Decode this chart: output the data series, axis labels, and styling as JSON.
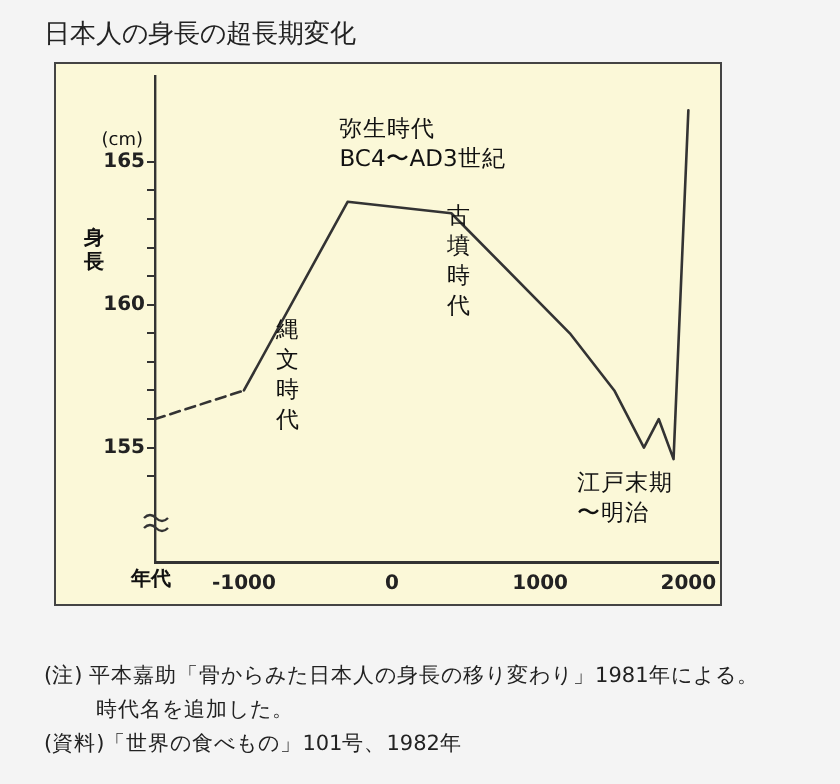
{
  "chart_data": {
    "type": "line",
    "title": "日本人の身長の超長期変化",
    "xlabel": "年代",
    "ylabel": "身長",
    "xlim": [
      -1600,
      2200
    ],
    "xticks": [
      -1000,
      0,
      1000,
      2000
    ],
    "ylim": [
      151,
      168
    ],
    "yticks": [
      {
        "value": 154,
        "label": null
      },
      155,
      {
        "value": 156,
        "label": null
      },
      {
        "value": 157,
        "label": null
      },
      {
        "value": 158,
        "label": null
      },
      {
        "value": 159,
        "label": null
      },
      160,
      {
        "value": 161,
        "label": null
      },
      {
        "value": 162,
        "label": null
      },
      {
        "value": 163,
        "label": null
      },
      {
        "value": 164,
        "label": null
      },
      165
    ],
    "grid": false,
    "legend": false,
    "marker": "none",
    "series": [
      {
        "color": "#333333",
        "line_style": "dashed",
        "x": [
          -1600,
          -1000
        ],
        "values": [
          156,
          157
        ]
      },
      {
        "color": "#333333",
        "line_style": "solid",
        "x": [
          -1000,
          -300,
          400,
          1200,
          1500,
          1700,
          1800,
          1900,
          2000
        ],
        "values": [
          157,
          163.6,
          163.2,
          159,
          157,
          155,
          156,
          154.6,
          166.8
        ]
      }
    ],
    "annotations": [
      "(cm)",
      "弥生時代BC4〜AD3世紀",
      "縄文時代",
      "古墳時代",
      "江戸末期〜明治",
      "(注) 平本嘉助「骨からみた日本人の身長の移り変わり」1981年による。時代名を追加した。",
      "(資料)「世界の食べもの」101号、1982年"
    ]
  }
}
